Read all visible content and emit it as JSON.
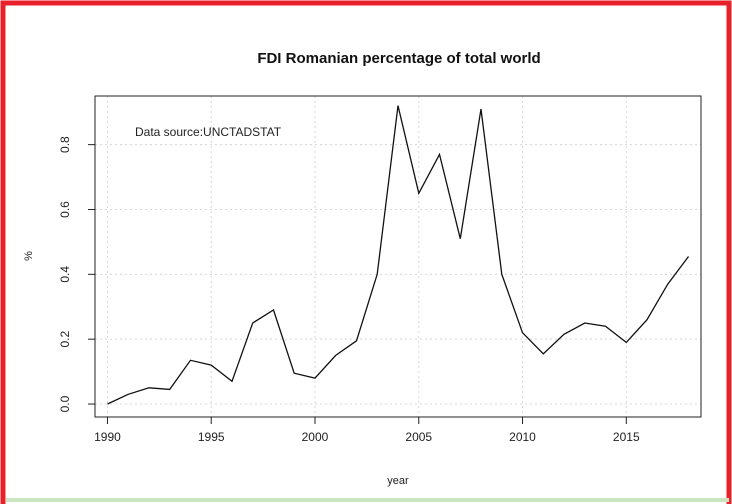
{
  "chart_data": {
    "type": "line",
    "title": "FDI Romanian percentage of total world",
    "annotation": "Data source:UNCTADSTAT",
    "xlabel": "year",
    "ylabel": "%",
    "xlim": [
      1989.4,
      2018.6
    ],
    "ylim": [
      -0.04,
      0.95
    ],
    "xticks": [
      1990,
      1995,
      2000,
      2005,
      2010,
      2015
    ],
    "yticks": [
      0.0,
      0.2,
      0.4,
      0.6,
      0.8
    ],
    "grid": true,
    "series": [
      {
        "x": [
          1990,
          1991,
          1992,
          1993,
          1994,
          1995,
          1996,
          1997,
          1998,
          1999,
          2000,
          2001,
          2002,
          2003,
          2004,
          2005,
          2006,
          2007,
          2008,
          2009,
          2010,
          2011,
          2012,
          2013,
          2014,
          2015,
          2016,
          2017,
          2018
        ],
        "values": [
          0.0,
          0.03,
          0.05,
          0.045,
          0.135,
          0.12,
          0.07,
          0.25,
          0.29,
          0.095,
          0.08,
          0.15,
          0.195,
          0.4,
          0.92,
          0.65,
          0.77,
          0.51,
          0.91,
          0.4,
          0.22,
          0.155,
          0.215,
          0.25,
          0.24,
          0.19,
          0.26,
          0.37,
          0.455
        ]
      }
    ]
  }
}
